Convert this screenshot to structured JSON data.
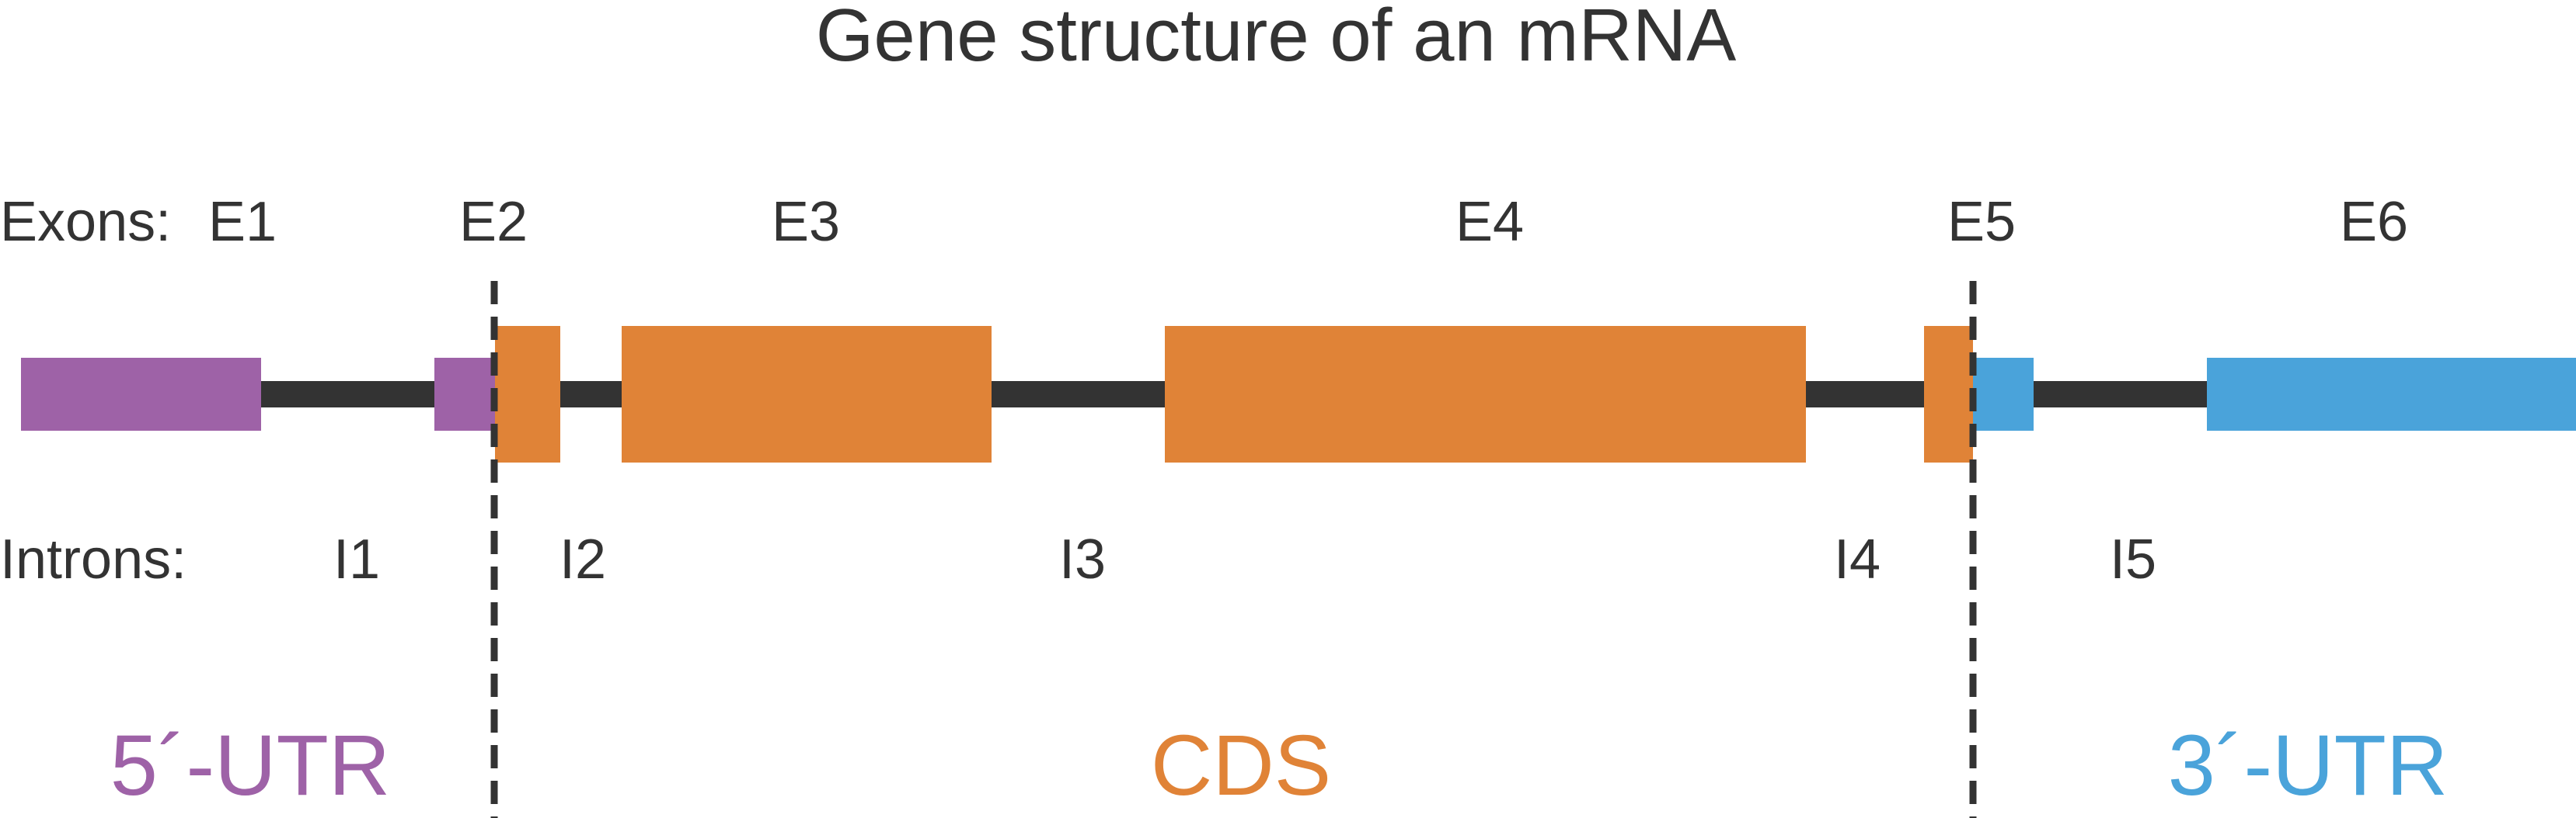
{
  "title": "Gene structure of an mRNA",
  "exons_label": "Exons:",
  "introns_label": "Introns:",
  "exon_labels": [
    "E1",
    "E2",
    "E3",
    "E4",
    "E5",
    "E6"
  ],
  "intron_labels": [
    "I1",
    "I2",
    "I3",
    "I4",
    "I5"
  ],
  "regions": [
    {
      "label": "5´-UTR",
      "color": "#9e62a7"
    },
    {
      "label": "CDS",
      "color": "#e08337"
    },
    {
      "label": "3´-UTR",
      "color": "#4aa3da"
    }
  ],
  "colors": {
    "backbone": "#333333",
    "divider": "#333333"
  }
}
